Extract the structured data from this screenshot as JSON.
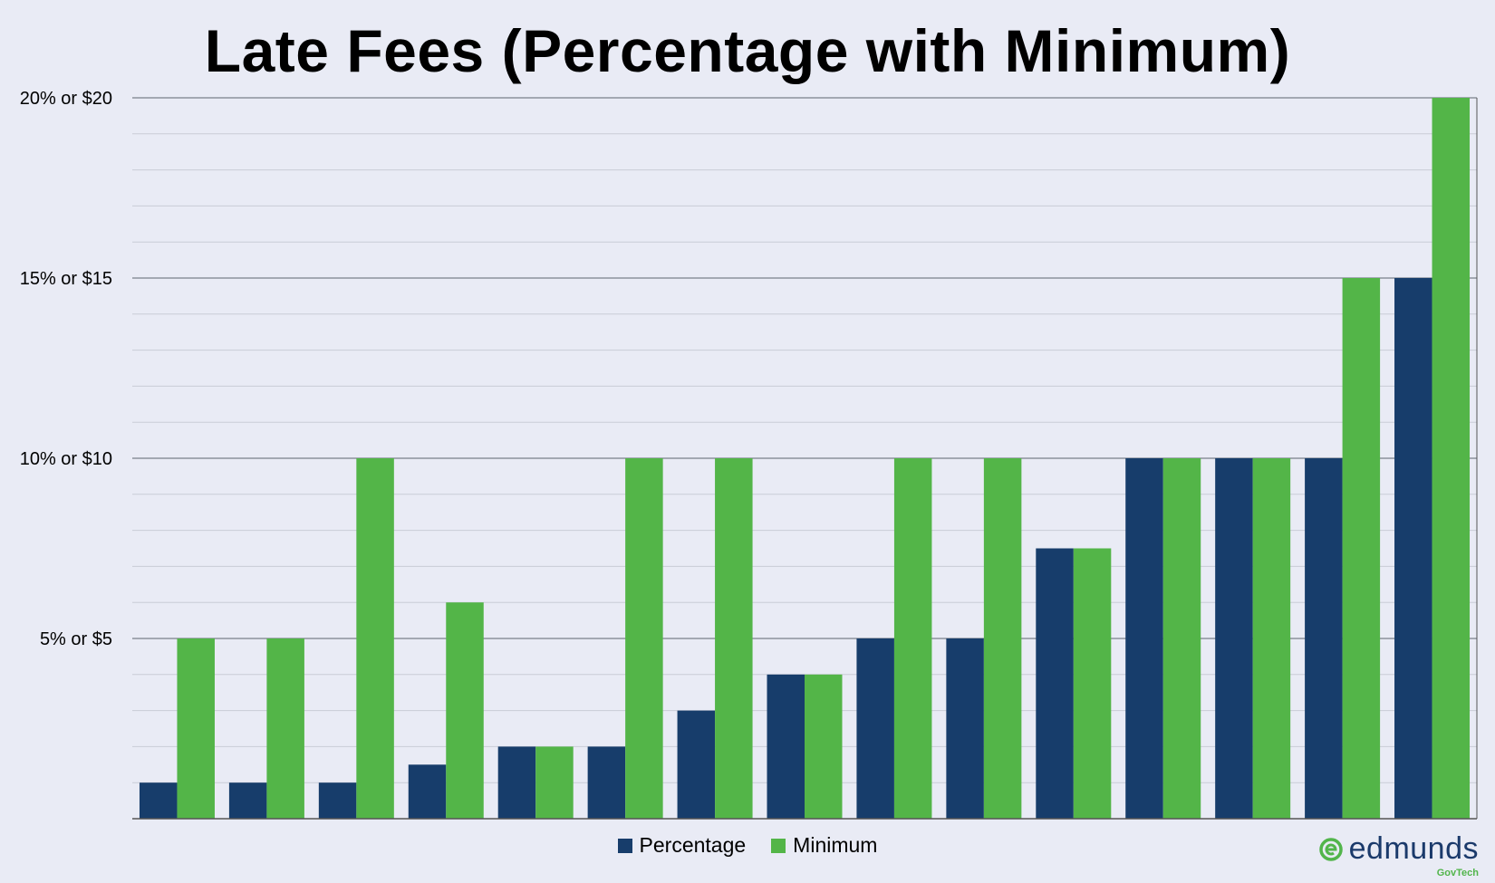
{
  "chart_data": {
    "type": "bar",
    "title": "Late Fees (Percentage with Minimum)",
    "xlabel": "",
    "ylabel": "",
    "ylim": [
      0,
      20
    ],
    "y_ticks": [
      {
        "value": 5,
        "label": "5% or $5"
      },
      {
        "value": 10,
        "label": "10% or $10"
      },
      {
        "value": 15,
        "label": "15% or $15"
      },
      {
        "value": 20,
        "label": "20% or $20"
      }
    ],
    "minor_grid_step": 1,
    "grid": true,
    "legend_position": "bottom",
    "categories": [
      "",
      "",
      "",
      "",
      "",
      "",
      "",
      "",
      "",
      "",
      "",
      "",
      "",
      "",
      ""
    ],
    "series": [
      {
        "name": "Percentage",
        "color": "#173d6b",
        "values": [
          1,
          1,
          1,
          1.5,
          2,
          2,
          3,
          4,
          5,
          5,
          7.5,
          10,
          10,
          10,
          15
        ]
      },
      {
        "name": "Minimum",
        "color": "#53b548",
        "values": [
          5,
          5,
          10,
          6,
          2,
          10,
          10,
          4,
          10,
          10,
          7.5,
          10,
          10,
          15,
          20
        ]
      }
    ]
  },
  "logo": {
    "word": "edmunds",
    "sub": "GovTech",
    "icon": "edmunds-logo-icon"
  }
}
